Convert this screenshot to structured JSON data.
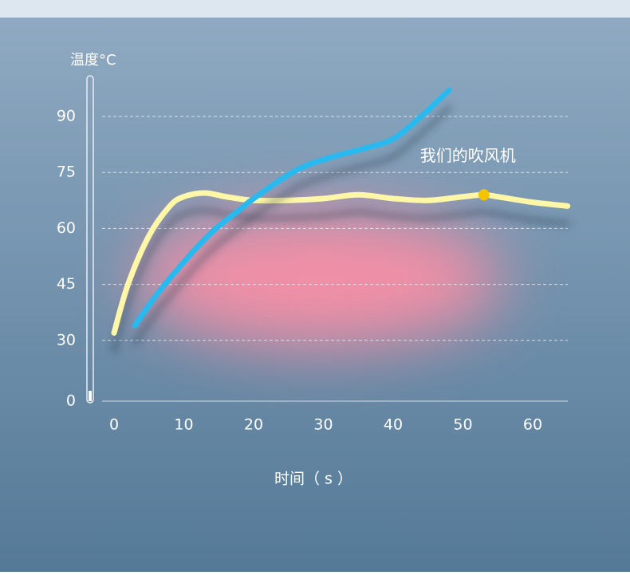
{
  "chart_data": {
    "type": "line",
    "x_label": "时间（ s ）",
    "y_label": "温度°C",
    "xlim": [
      -2,
      65
    ],
    "ylim": [
      0,
      100
    ],
    "xticks": [
      0,
      10,
      20,
      30,
      40,
      50,
      60
    ],
    "yticks": [
      0,
      30,
      45,
      60,
      75,
      90
    ],
    "grid": true,
    "series": [
      {
        "name": "我们的吹风机",
        "color": "#fff7a8",
        "marker_x": 53,
        "marker_color": "#f5c400",
        "x": [
          0,
          2,
          5,
          8,
          10,
          13,
          16,
          20,
          25,
          30,
          35,
          40,
          45,
          50,
          53,
          55,
          60,
          65
        ],
        "values": [
          32,
          45,
          58,
          66,
          68.5,
          69.5,
          68.5,
          67.5,
          67.5,
          68,
          69,
          68,
          67.5,
          68.5,
          69,
          68.5,
          67,
          66
        ]
      },
      {
        "color": "#2bb9ee",
        "x": [
          3,
          6,
          10,
          14,
          18,
          20,
          26,
          31,
          36,
          40,
          44,
          48
        ],
        "values": [
          34,
          42,
          51,
          59,
          65,
          68,
          75.5,
          79,
          81.5,
          84,
          90,
          97
        ]
      }
    ]
  }
}
